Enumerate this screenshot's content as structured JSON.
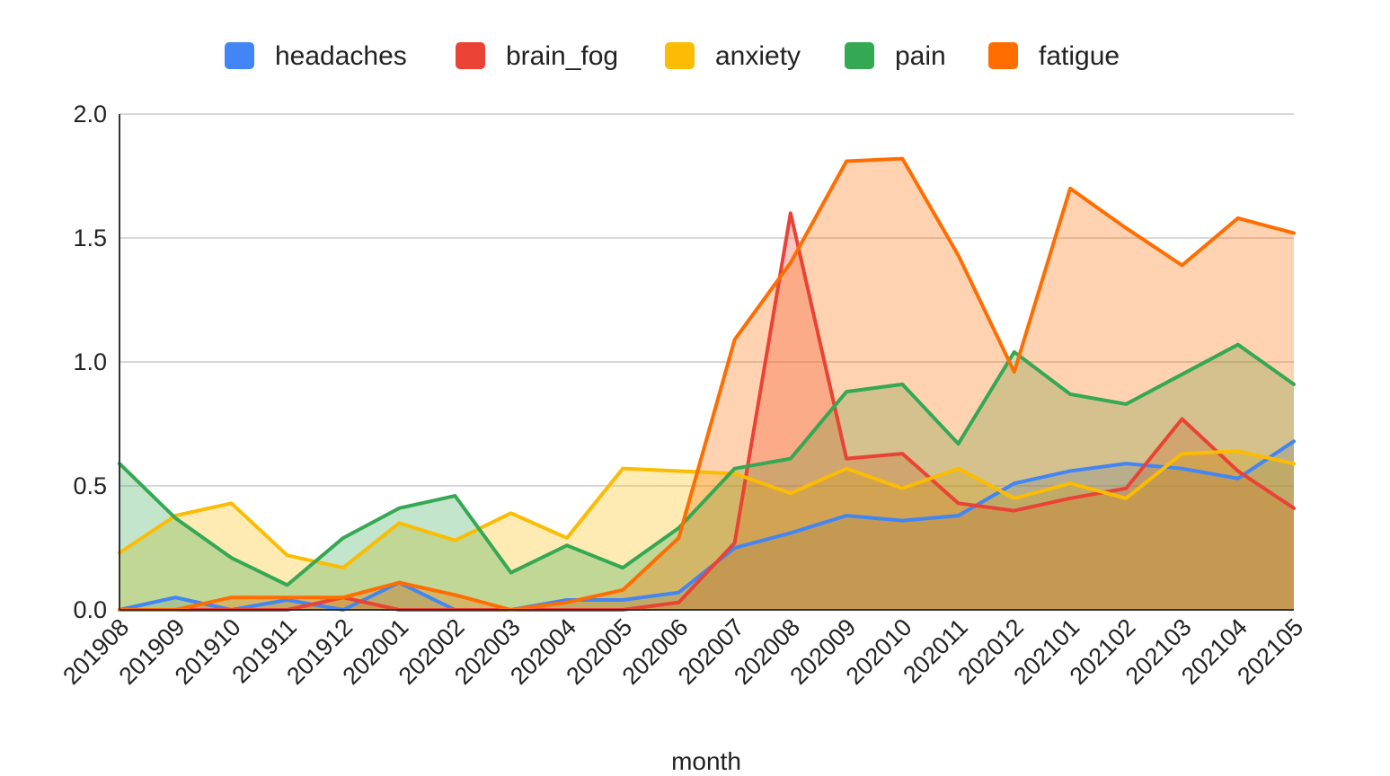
{
  "chart_data": {
    "type": "area",
    "title": "",
    "xlabel": "month",
    "ylabel": "",
    "ylim": [
      0,
      2.0
    ],
    "yticks": [
      "0.0",
      "0.5",
      "1.0",
      "1.5",
      "2.0"
    ],
    "grid": true,
    "legend_position": "top",
    "categories": [
      "201908",
      "201909",
      "201910",
      "201911",
      "201912",
      "202001",
      "202002",
      "202003",
      "202004",
      "202005",
      "202006",
      "202007",
      "202008",
      "202009",
      "202010",
      "202011",
      "202012",
      "202101",
      "202102",
      "202103",
      "202104",
      "202105"
    ],
    "series": [
      {
        "name": "headaches",
        "color": "#4285f4",
        "values": [
          0,
          0.05,
          0,
          0.04,
          0,
          0.11,
          0,
          0,
          0.04,
          0.04,
          0.07,
          0.25,
          0.31,
          0.38,
          0.36,
          0.38,
          0.51,
          0.56,
          0.59,
          0.57,
          0.53,
          0.68
        ]
      },
      {
        "name": "brain_fog",
        "color": "#ea4335",
        "values": [
          0,
          0,
          0,
          0,
          0.05,
          0,
          0,
          0,
          0,
          0,
          0.03,
          0.27,
          1.6,
          0.61,
          0.63,
          0.43,
          0.4,
          0.45,
          0.49,
          0.77,
          0.56,
          0.41
        ]
      },
      {
        "name": "anxiety",
        "color": "#fbbc04",
        "values": [
          0.23,
          0.38,
          0.43,
          0.22,
          0.17,
          0.35,
          0.28,
          0.39,
          0.29,
          0.57,
          0.56,
          0.55,
          0.47,
          0.57,
          0.49,
          0.57,
          0.45,
          0.51,
          0.45,
          0.63,
          0.64,
          0.59
        ]
      },
      {
        "name": "pain",
        "color": "#34a853",
        "values": [
          0.59,
          0.37,
          0.21,
          0.1,
          0.29,
          0.41,
          0.46,
          0.15,
          0.26,
          0.17,
          0.33,
          0.57,
          0.61,
          0.88,
          0.91,
          0.67,
          1.04,
          0.87,
          0.83,
          0.95,
          1.07,
          0.91
        ]
      },
      {
        "name": "fatigue",
        "color": "#ff6d01",
        "values": [
          0,
          0,
          0.05,
          0.05,
          0.05,
          0.11,
          0.06,
          0,
          0.03,
          0.08,
          0.29,
          1.09,
          1.4,
          1.81,
          1.82,
          1.43,
          0.96,
          1.7,
          1.54,
          1.39,
          1.58,
          1.52
        ]
      }
    ]
  }
}
